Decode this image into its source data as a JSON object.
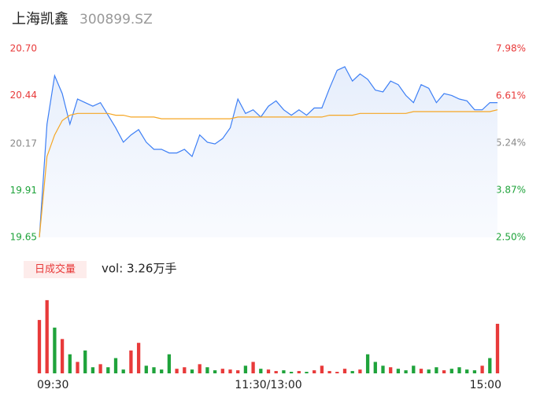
{
  "chart_data": {
    "type": "intraday",
    "title": "上海凯鑫",
    "subtitle": "300899.SZ",
    "volume_title": "日成交量",
    "volume_label": "vol: 3.26万手",
    "x": [
      0,
      4,
      8,
      12,
      16,
      20,
      24,
      28,
      32,
      36,
      40,
      44,
      48,
      52,
      56,
      60,
      64,
      68,
      72,
      76,
      80,
      84,
      88,
      92,
      96,
      100,
      104,
      108,
      112,
      116,
      120,
      124,
      128,
      132,
      136,
      140,
      144,
      148,
      152,
      156,
      160,
      164,
      168,
      172,
      176,
      180,
      184,
      188,
      192,
      196,
      200,
      204,
      208,
      212,
      216,
      220,
      224,
      228,
      232,
      236,
      240
    ],
    "xlim": [
      0,
      240
    ],
    "xticks": [
      {
        "value": 0,
        "label": "09:30"
      },
      {
        "value": 120,
        "label": "11:30/13:00"
      },
      {
        "value": 240,
        "label": "15:00"
      }
    ],
    "ylim": [
      19.65,
      20.7
    ],
    "yticks": [
      19.65,
      19.91,
      20.17,
      20.44,
      {
        "value": 20.7,
        "label": "20.70"
      }
    ],
    "ytick_colors": [
      "#1fa33b",
      "#1fa33b",
      "#888888",
      "#e83a3a",
      "#e83a3a"
    ],
    "y2lim": [
      2.5,
      7.98
    ],
    "y2ticks": [
      {
        "value": 2.5,
        "label": "2.50%"
      },
      {
        "value": 3.87,
        "label": "3.87%"
      },
      {
        "value": 5.24,
        "label": "5.24%"
      },
      {
        "value": 6.61,
        "label": "6.61%"
      },
      {
        "value": 7.98,
        "label": "7.98%"
      }
    ],
    "series": [
      {
        "name": "price",
        "color": "#3d7ff5",
        "values": [
          19.65,
          20.28,
          20.55,
          20.45,
          20.28,
          20.42,
          20.4,
          20.38,
          20.4,
          20.33,
          20.26,
          20.18,
          20.22,
          20.25,
          20.18,
          20.14,
          20.14,
          20.12,
          20.12,
          20.14,
          20.1,
          20.22,
          20.18,
          20.17,
          20.2,
          20.26,
          20.42,
          20.34,
          20.36,
          20.32,
          20.38,
          20.41,
          20.36,
          20.33,
          20.36,
          20.33,
          20.37,
          20.37,
          20.48,
          20.58,
          20.6,
          20.52,
          20.56,
          20.53,
          20.47,
          20.46,
          20.52,
          20.5,
          20.44,
          20.4,
          20.5,
          20.48,
          20.4,
          20.45,
          20.44,
          20.42,
          20.41,
          20.36,
          20.36,
          20.4,
          20.4
        ]
      },
      {
        "name": "average",
        "color": "#f5a623",
        "values": [
          19.65,
          20.1,
          20.22,
          20.3,
          20.33,
          20.34,
          20.34,
          20.34,
          20.34,
          20.34,
          20.33,
          20.33,
          20.32,
          20.32,
          20.32,
          20.32,
          20.31,
          20.31,
          20.31,
          20.31,
          20.31,
          20.31,
          20.31,
          20.31,
          20.31,
          20.31,
          20.32,
          20.32,
          20.32,
          20.32,
          20.32,
          20.32,
          20.32,
          20.32,
          20.32,
          20.32,
          20.32,
          20.32,
          20.33,
          20.33,
          20.33,
          20.33,
          20.34,
          20.34,
          20.34,
          20.34,
          20.34,
          20.34,
          20.34,
          20.35,
          20.35,
          20.35,
          20.35,
          20.35,
          20.35,
          20.35,
          20.35,
          20.35,
          20.35,
          20.35,
          20.36
        ]
      }
    ],
    "volume": {
      "ylim": [
        0,
        100
      ],
      "values": [
        70,
        96,
        60,
        45,
        25,
        15,
        30,
        8,
        12,
        8,
        20,
        5,
        30,
        40,
        10,
        8,
        5,
        25,
        6,
        8,
        5,
        12,
        8,
        4,
        6,
        5,
        4,
        10,
        15,
        6,
        5,
        3,
        4,
        2,
        3,
        2,
        4,
        10,
        3,
        2,
        6,
        3,
        5,
        25,
        15,
        10,
        8,
        6,
        4,
        10,
        6,
        5,
        8,
        4,
        6,
        8,
        5,
        4,
        10,
        20,
        65
      ],
      "colors": [
        "#e83a3a",
        "#e83a3a",
        "#1fa33b",
        "#e83a3a",
        "#1fa33b",
        "#e83a3a",
        "#1fa33b",
        "#1fa33b",
        "#e83a3a",
        "#1fa33b",
        "#1fa33b",
        "#1fa33b",
        "#e83a3a",
        "#e83a3a",
        "#1fa33b",
        "#1fa33b",
        "#1fa33b",
        "#1fa33b",
        "#e83a3a",
        "#e83a3a",
        "#1fa33b",
        "#e83a3a",
        "#1fa33b",
        "#1fa33b",
        "#e83a3a",
        "#e83a3a",
        "#e83a3a",
        "#1fa33b",
        "#e83a3a",
        "#1fa33b",
        "#e83a3a",
        "#e83a3a",
        "#1fa33b",
        "#1fa33b",
        "#e83a3a",
        "#1fa33b",
        "#e83a3a",
        "#e83a3a",
        "#e83a3a",
        "#e83a3a",
        "#e83a3a",
        "#1fa33b",
        "#e83a3a",
        "#1fa33b",
        "#1fa33b",
        "#1fa33b",
        "#e83a3a",
        "#1fa33b",
        "#1fa33b",
        "#1fa33b",
        "#e83a3a",
        "#1fa33b",
        "#1fa33b",
        "#e83a3a",
        "#1fa33b",
        "#1fa33b",
        "#1fa33b",
        "#1fa33b",
        "#e83a3a",
        "#1fa33b",
        "#e83a3a"
      ]
    }
  }
}
